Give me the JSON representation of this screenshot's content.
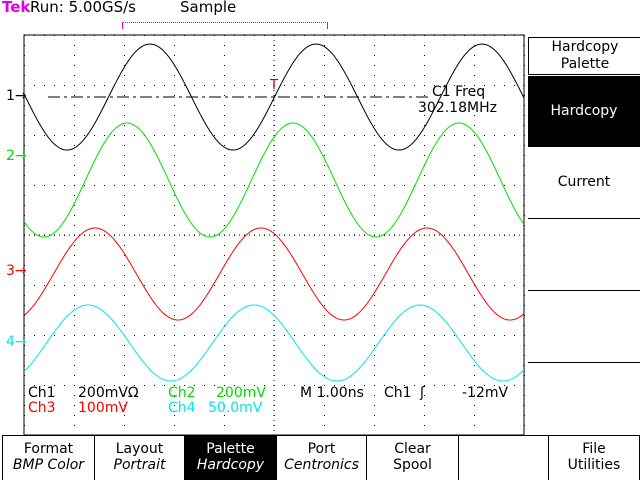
{
  "header": {
    "brand": "Tek",
    "run": "Run: 5.00GS/s",
    "acq_mode": "Sample"
  },
  "channels": [
    {
      "marker": "1→",
      "color": "#000000"
    },
    {
      "marker": "2→",
      "color": "#00e000"
    },
    {
      "marker": "3→",
      "color": "#ff0000"
    },
    {
      "marker": "4→",
      "color": "#00e8e8"
    }
  ],
  "measurement": {
    "label": "C1 Freq",
    "value": "302.18MHz"
  },
  "trigger_marker": "T",
  "readout": {
    "ch1": "Ch1",
    "ch1_scale": "200mVΩ",
    "ch2": "Ch2",
    "ch2_scale": "200mV",
    "time": "M 1.00ns",
    "trig_src": "Ch1",
    "trig_slope": "ʃ",
    "trig_level": "-12mV",
    "ch3": "Ch3",
    "ch3_scale": "100mV",
    "ch4": "Ch4",
    "ch4_scale": "50.0mV"
  },
  "side_menu": [
    {
      "label": "Hardcopy Palette"
    },
    {
      "label": "Hardcopy",
      "selected": true
    },
    {
      "label": "Current"
    },
    {
      "label": ""
    },
    {
      "label": ""
    },
    {
      "label": ""
    }
  ],
  "bottom_menu": [
    {
      "title": "Format",
      "value": "BMP Color"
    },
    {
      "title": "Layout",
      "value": "Portrait"
    },
    {
      "title": "Palette",
      "value": "Hardcopy",
      "selected": true
    },
    {
      "title": "Port",
      "value": "Centronics"
    },
    {
      "title": "Clear",
      "value": "Spool"
    },
    {
      "title": "",
      "value": ""
    },
    {
      "title": "File",
      "value": "Utilities"
    }
  ]
}
